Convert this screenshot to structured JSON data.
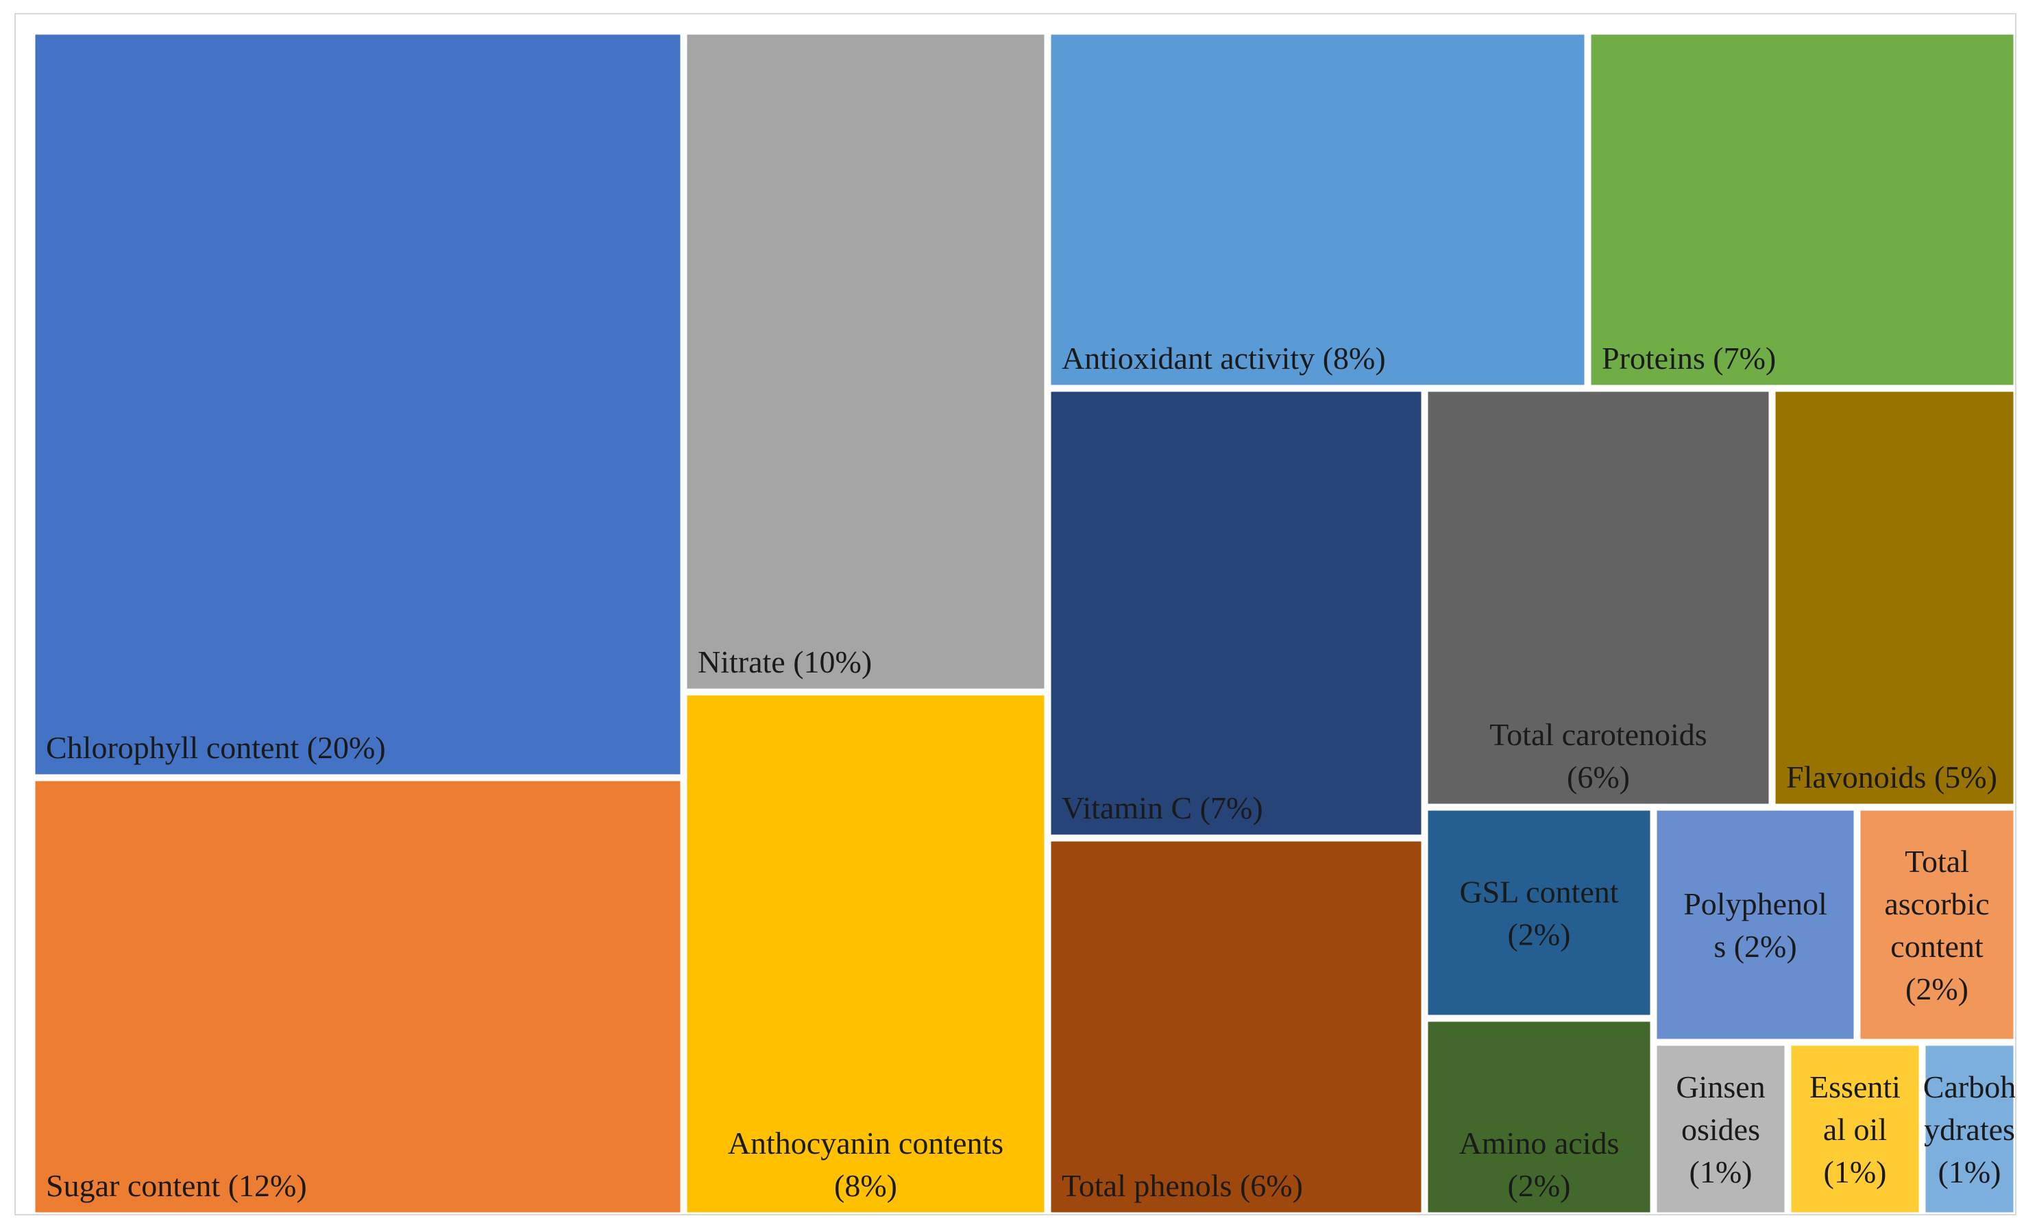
{
  "chart_data": {
    "type": "treemap",
    "title": "",
    "tiles": [
      {
        "name": "Chlorophyll content",
        "value": 20,
        "label": "Chlorophyll content (20%)",
        "color": "#4472C4",
        "lines": [
          "Chlorophyll content (20%)"
        ]
      },
      {
        "name": "Sugar content",
        "value": 12,
        "label": "Sugar content (12%)",
        "color": "#ED7D31",
        "lines": [
          "Sugar content (12%)"
        ]
      },
      {
        "name": "Nitrate",
        "value": 10,
        "label": "Nitrate (10%)",
        "color": "#A5A5A5",
        "lines": [
          "Nitrate (10%)"
        ]
      },
      {
        "name": "Anthocyanin contents",
        "value": 8,
        "label": "Anthocyanin contents (8%)",
        "color": "#FFC000",
        "lines": [
          "Anthocyanin contents",
          "(8%)"
        ]
      },
      {
        "name": "Antioxidant activity",
        "value": 8,
        "label": "Antioxidant activity (8%)",
        "color": "#5B9BD5",
        "lines": [
          "Antioxidant activity (8%)"
        ]
      },
      {
        "name": "Proteins",
        "value": 7,
        "label": "Proteins (7%)",
        "color": "#70AD47",
        "lines": [
          "Proteins (7%)"
        ]
      },
      {
        "name": "Vitamin C",
        "value": 7,
        "label": "Vitamin C (7%)",
        "color": "#264478",
        "lines": [
          "Vitamin C (7%)"
        ]
      },
      {
        "name": "Total phenols",
        "value": 6,
        "label": "Total phenols (6%)",
        "color": "#9E480E",
        "lines": [
          "Total phenols (6%)"
        ]
      },
      {
        "name": "Total carotenoids",
        "value": 6,
        "label": "Total carotenoids (6%)",
        "color": "#636363",
        "lines": [
          "Total carotenoids",
          "(6%)"
        ]
      },
      {
        "name": "Flavonoids",
        "value": 5,
        "label": "Flavonoids (5%)",
        "color": "#997300",
        "lines": [
          "Flavonoids (5%)"
        ]
      },
      {
        "name": "GSL content",
        "value": 2,
        "label": "GSL content (2%)",
        "color": "#255E91",
        "lines": [
          "GSL content",
          "(2%)"
        ]
      },
      {
        "name": "Amino acids",
        "value": 2,
        "label": "Amino acids (2%)",
        "color": "#43682B",
        "lines": [
          "Amino acids",
          "(2%)"
        ]
      },
      {
        "name": "Polyphenols",
        "value": 2,
        "label": "Polyphenols (2%)",
        "color": "#698ED0",
        "lines": [
          "Polyphenol",
          "s (2%)"
        ]
      },
      {
        "name": "Total ascorbic content",
        "value": 2,
        "label": "Total ascorbic content (2%)",
        "color": "#F1975A",
        "lines": [
          "Total",
          "ascorbic",
          "content",
          "(2%)"
        ]
      },
      {
        "name": "Ginsenosides",
        "value": 1,
        "label": "Ginsenosides (1%)",
        "color": "#B7B7B7",
        "lines": [
          "Ginsen",
          "osides",
          "(1%)"
        ]
      },
      {
        "name": "Essential oil",
        "value": 1,
        "label": "Essential oil (1%)",
        "color": "#FFCD33",
        "lines": [
          "Essenti",
          "al oil",
          "(1%)"
        ]
      },
      {
        "name": "Carbohydrates",
        "value": 1,
        "label": "Carbohydrates (1%)",
        "color": "#7CAFDD",
        "lines": [
          "Carboh",
          "ydrates",
          "(1%)"
        ]
      }
    ]
  }
}
